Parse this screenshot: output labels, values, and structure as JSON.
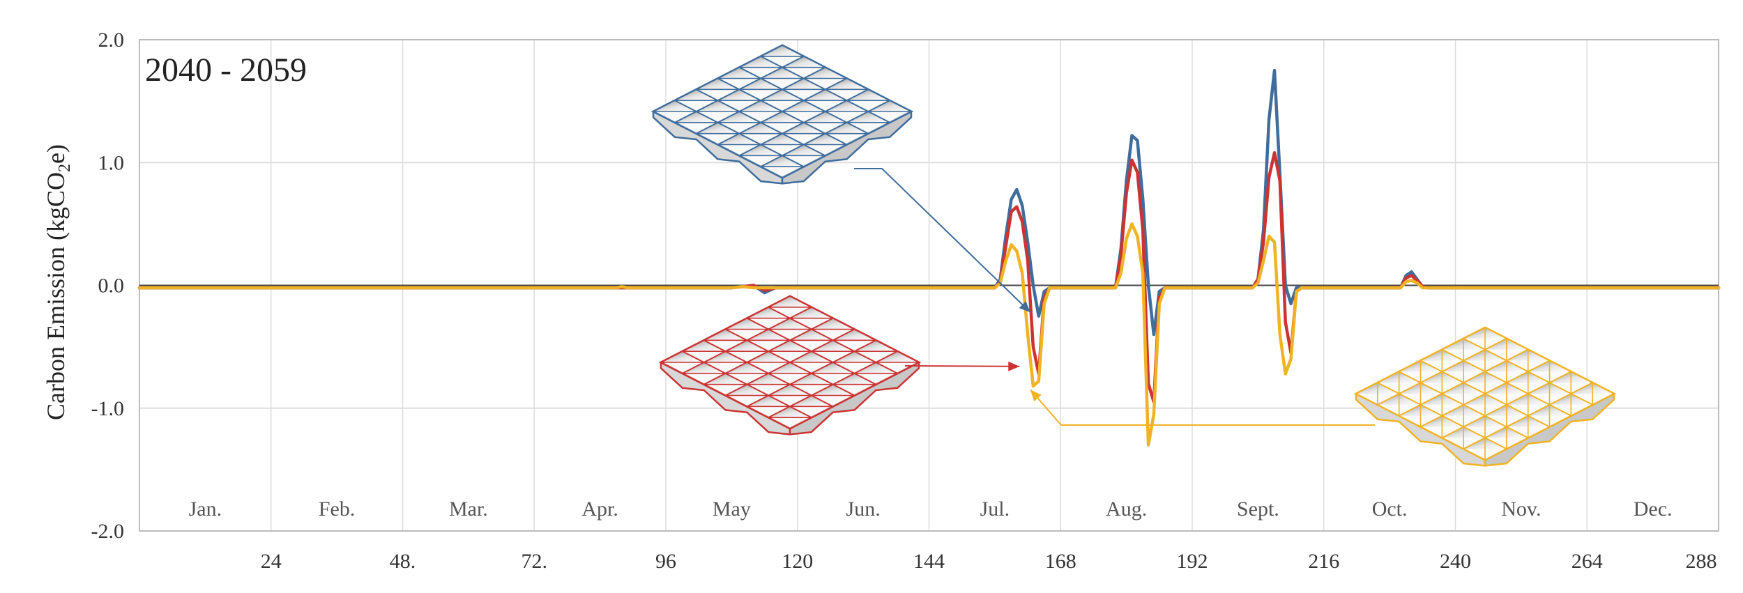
{
  "chart_data": {
    "type": "line",
    "title": "",
    "period_label": "2040 - 2059",
    "ylabel": "Carbon Emission (kgCO",
    "ylabel_sub": "2",
    "ylabel_end": "e)",
    "xlim": [
      0,
      288
    ],
    "ylim": [
      -2.0,
      2.0
    ],
    "yticks": [
      {
        "value": 2.0,
        "label": "2.0"
      },
      {
        "value": 1.0,
        "label": "1.0"
      },
      {
        "value": 0.0,
        "label": "0.0"
      },
      {
        "value": -1.0,
        "label": "-1.0"
      },
      {
        "value": -2.0,
        "label": "-2.0"
      }
    ],
    "xticks": [
      {
        "value": 24,
        "label": "24"
      },
      {
        "value": 48,
        "label": "48."
      },
      {
        "value": 72,
        "label": "72."
      },
      {
        "value": 96,
        "label": "96"
      },
      {
        "value": 120,
        "label": "120"
      },
      {
        "value": 144,
        "label": "144"
      },
      {
        "value": 168,
        "label": "168"
      },
      {
        "value": 192,
        "label": "192"
      },
      {
        "value": 216,
        "label": "216"
      },
      {
        "value": 240,
        "label": "240"
      },
      {
        "value": 264,
        "label": "264"
      },
      {
        "value": 288,
        "label": "288"
      }
    ],
    "months": [
      "Jan.",
      "Feb.",
      "Mar.",
      "Apr.",
      "May",
      "Jun.",
      "Jul.",
      "Aug.",
      "Sept.",
      "Oct.",
      "Nov.",
      "Dec."
    ],
    "grid": true,
    "colors": {
      "blue": "#3f6d9c",
      "red": "#cc3333",
      "yellow": "#f0b323",
      "zero_line": "#444444",
      "grid": "#dddddd"
    },
    "series": [
      {
        "color": "#3f6d9c",
        "points": [
          [
            0,
            -0.02
          ],
          [
            108,
            -0.02
          ],
          [
            110,
            -0.01
          ],
          [
            112,
            0.0
          ],
          [
            114,
            -0.06
          ],
          [
            116,
            -0.02
          ],
          [
            156,
            -0.02
          ],
          [
            157,
            0.05
          ],
          [
            158,
            0.4
          ],
          [
            159,
            0.7
          ],
          [
            160,
            0.78
          ],
          [
            161,
            0.65
          ],
          [
            162,
            0.35
          ],
          [
            163,
            0.0
          ],
          [
            164,
            -0.25
          ],
          [
            165,
            -0.05
          ],
          [
            166,
            -0.02
          ],
          [
            178,
            -0.02
          ],
          [
            179,
            0.3
          ],
          [
            180,
            0.85
          ],
          [
            181,
            1.22
          ],
          [
            182,
            1.18
          ],
          [
            183,
            0.7
          ],
          [
            184,
            0.0
          ],
          [
            185,
            -0.4
          ],
          [
            186,
            -0.05
          ],
          [
            187,
            -0.02
          ],
          [
            203,
            -0.02
          ],
          [
            204,
            0.05
          ],
          [
            205,
            0.45
          ],
          [
            206,
            1.35
          ],
          [
            207,
            1.75
          ],
          [
            208,
            0.9
          ],
          [
            209,
            0.0
          ],
          [
            210,
            -0.15
          ],
          [
            211,
            -0.02
          ],
          [
            230,
            -0.02
          ],
          [
            231,
            0.08
          ],
          [
            232,
            0.11
          ],
          [
            233,
            0.05
          ],
          [
            234,
            -0.01
          ],
          [
            235,
            -0.02
          ],
          [
            288,
            -0.02
          ]
        ]
      },
      {
        "color": "#cc3333",
        "points": [
          [
            0,
            -0.02
          ],
          [
            108,
            -0.02
          ],
          [
            110,
            -0.01
          ],
          [
            112,
            0.0
          ],
          [
            114,
            -0.04
          ],
          [
            116,
            -0.02
          ],
          [
            156,
            -0.02
          ],
          [
            157,
            0.03
          ],
          [
            158,
            0.32
          ],
          [
            159,
            0.6
          ],
          [
            160,
            0.64
          ],
          [
            161,
            0.52
          ],
          [
            162,
            0.2
          ],
          [
            163,
            -0.5
          ],
          [
            164,
            -0.72
          ],
          [
            165,
            -0.1
          ],
          [
            166,
            -0.02
          ],
          [
            178,
            -0.02
          ],
          [
            179,
            0.25
          ],
          [
            180,
            0.75
          ],
          [
            181,
            1.02
          ],
          [
            182,
            0.92
          ],
          [
            183,
            0.45
          ],
          [
            184,
            -0.8
          ],
          [
            185,
            -0.95
          ],
          [
            186,
            -0.1
          ],
          [
            187,
            -0.02
          ],
          [
            203,
            -0.02
          ],
          [
            204,
            0.05
          ],
          [
            205,
            0.35
          ],
          [
            206,
            0.88
          ],
          [
            207,
            1.08
          ],
          [
            208,
            0.85
          ],
          [
            209,
            -0.3
          ],
          [
            210,
            -0.55
          ],
          [
            211,
            -0.05
          ],
          [
            212,
            -0.02
          ],
          [
            230,
            -0.02
          ],
          [
            231,
            0.06
          ],
          [
            232,
            0.08
          ],
          [
            233,
            0.04
          ],
          [
            234,
            -0.01
          ],
          [
            235,
            -0.02
          ],
          [
            288,
            -0.02
          ]
        ]
      },
      {
        "color": "#f0b323",
        "points": [
          [
            0,
            -0.02
          ],
          [
            87,
            -0.02
          ],
          [
            88,
            -0.01
          ],
          [
            89,
            -0.02
          ],
          [
            108,
            -0.02
          ],
          [
            110,
            -0.01
          ],
          [
            112,
            -0.02
          ],
          [
            156,
            -0.02
          ],
          [
            157,
            0.02
          ],
          [
            158,
            0.2
          ],
          [
            159,
            0.33
          ],
          [
            160,
            0.28
          ],
          [
            161,
            0.1
          ],
          [
            162,
            -0.4
          ],
          [
            163,
            -0.82
          ],
          [
            164,
            -0.78
          ],
          [
            165,
            -0.15
          ],
          [
            166,
            -0.02
          ],
          [
            178,
            -0.02
          ],
          [
            179,
            0.1
          ],
          [
            180,
            0.38
          ],
          [
            181,
            0.5
          ],
          [
            182,
            0.4
          ],
          [
            183,
            0.1
          ],
          [
            184,
            -1.3
          ],
          [
            185,
            -1.05
          ],
          [
            186,
            -0.15
          ],
          [
            187,
            -0.02
          ],
          [
            203,
            -0.02
          ],
          [
            204,
            0.02
          ],
          [
            205,
            0.2
          ],
          [
            206,
            0.4
          ],
          [
            207,
            0.35
          ],
          [
            208,
            -0.4
          ],
          [
            209,
            -0.72
          ],
          [
            210,
            -0.6
          ],
          [
            211,
            -0.05
          ],
          [
            212,
            -0.02
          ],
          [
            230,
            -0.02
          ],
          [
            231,
            0.03
          ],
          [
            232,
            0.04
          ],
          [
            233,
            0.02
          ],
          [
            234,
            -0.02
          ],
          [
            288,
            -0.02
          ]
        ]
      }
    ],
    "annotations": [
      {
        "color": "#3f6d9c",
        "target": [
          162.5,
          -0.22
        ]
      },
      {
        "color": "#cc3333",
        "target": [
          160.5,
          -0.66
        ]
      },
      {
        "color": "#f0b323",
        "target": [
          162.5,
          -0.85
        ]
      }
    ]
  }
}
